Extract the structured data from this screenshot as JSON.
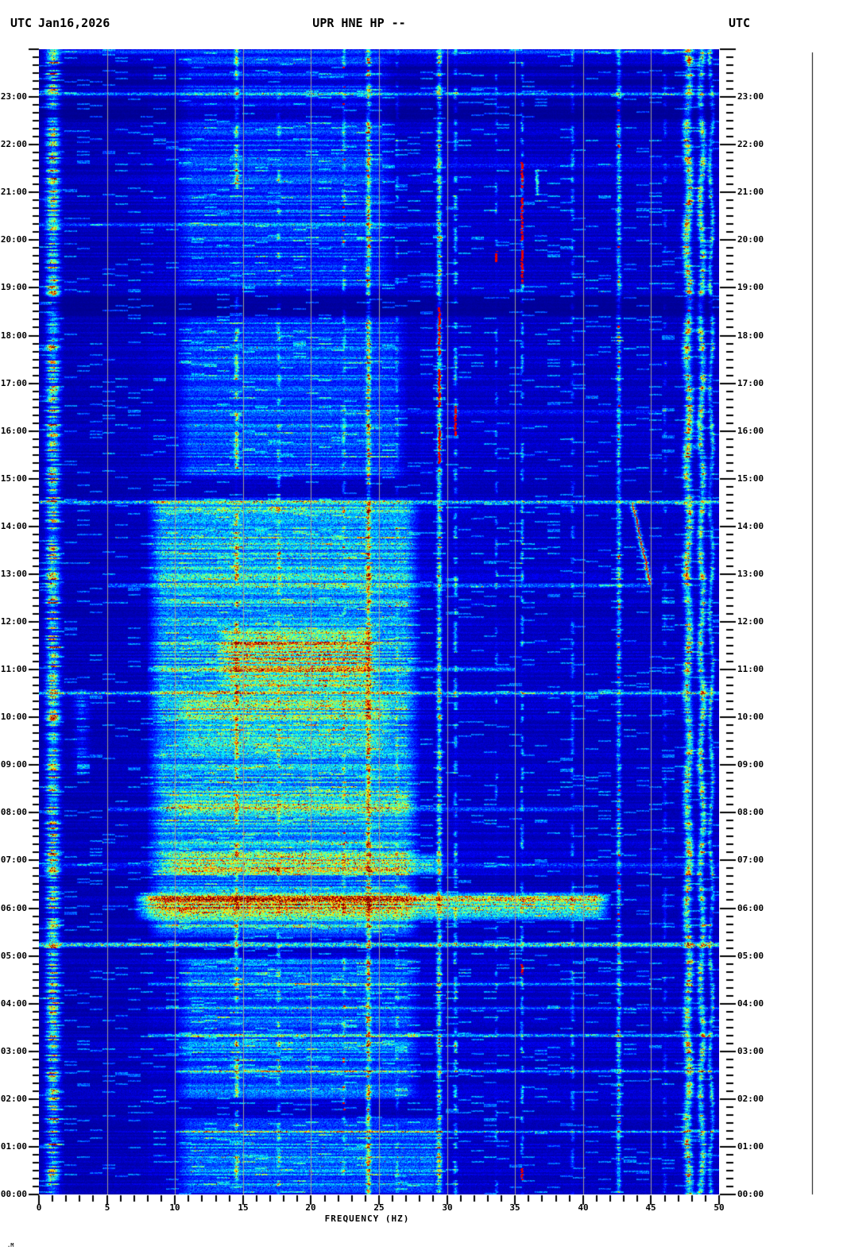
{
  "header": {
    "left_utc": "UTC",
    "date": "Jan16,2026",
    "title": "UPR HNE HP --",
    "right_utc": "UTC"
  },
  "footer_mark": ".M",
  "palette": {
    "page_bg": "#ffffff",
    "text": "#000000",
    "gridline": "#a09e94",
    "deep_blue_background": "#0000b0",
    "cyan_energy": "#00ffff",
    "yellow_energy": "#ffff00",
    "red_peak": "#d00000"
  },
  "chart_data": {
    "type": "heatmap",
    "subtype": "seismic-spectrogram",
    "title": "UPR HNE HP --",
    "date": "Jan16,2026",
    "timezone": "UTC",
    "xlabel": "FREQUENCY (HZ)",
    "x_range_hz": [
      0,
      50
    ],
    "x_major_tick_step_hz": 5,
    "x_minor_tick_step_hz": 1,
    "x_tick_labels": [
      "0",
      "5",
      "10",
      "15",
      "20",
      "25",
      "30",
      "35",
      "40",
      "45",
      "50"
    ],
    "y_axis_direction": "time of day UTC, 00:00 at bottom rising to 24:00 at top",
    "y_minor_tick_minutes": 10,
    "y_tick_labels_left": [
      "23:00",
      "22:00",
      "21:00",
      "20:00",
      "19:00",
      "18:00",
      "17:00",
      "16:00",
      "15:00",
      "14:00",
      "13:00",
      "12:00",
      "11:00",
      "10:00",
      "09:00",
      "08:00",
      "07:00",
      "06:00",
      "05:00",
      "04:00",
      "03:00",
      "02:00",
      "01:00",
      "00:00"
    ],
    "y_tick_labels_right": [
      "23:00",
      "22:00",
      "21:00",
      "20:00",
      "19:00",
      "18:00",
      "17:00",
      "16:00",
      "15:00",
      "14:00",
      "13:00",
      "12:00",
      "11:00",
      "10:00",
      "09:00",
      "08:00",
      "07:00",
      "06:00",
      "05:00",
      "04:00",
      "03:00",
      "02:00",
      "01:00",
      "00:00"
    ],
    "colormap": "jet",
    "gridline_freqs_hz": [
      5,
      10,
      15,
      20,
      25,
      30,
      35,
      40,
      45
    ],
    "features": {
      "background_level": 0.052,
      "hbands": [
        {
          "t": [
            5.4,
            14.6
          ],
          "f": [
            8,
            28
          ],
          "amp": 0.2
        },
        {
          "t": [
            10.6,
            11.9
          ],
          "f": [
            13,
            25
          ],
          "amp": 0.2
        },
        {
          "t": [
            5.75,
            6.35
          ],
          "f": [
            7,
            42
          ],
          "amp": 0.38
        },
        {
          "t": [
            6.7,
            7.15
          ],
          "f": [
            9,
            30
          ],
          "amp": 0.18
        },
        {
          "t": [
            7.9,
            8.45
          ],
          "f": [
            9,
            28
          ],
          "amp": 0.16
        },
        {
          "t": [
            9.3,
            10.45
          ],
          "f": [
            10,
            26
          ],
          "amp": 0.12
        },
        {
          "t": [
            2.0,
            5.0
          ],
          "f": [
            10,
            28
          ],
          "amp": 0.12
        },
        {
          "t": [
            0.0,
            1.6
          ],
          "f": [
            10,
            30
          ],
          "amp": 0.14
        },
        {
          "t": [
            15.0,
            18.4
          ],
          "f": [
            10,
            27
          ],
          "amp": 0.1
        },
        {
          "t": [
            19.0,
            23.9
          ],
          "f": [
            10,
            26
          ],
          "amp": 0.08
        },
        {
          "t": [
            23.9,
            24.0
          ],
          "f": [
            0,
            50
          ],
          "amp": 0.3
        }
      ],
      "hlines": [
        {
          "t": 14.52,
          "f": [
            0,
            50
          ],
          "amp": 0.38
        },
        {
          "t": 5.25,
          "f": [
            0,
            50
          ],
          "amp": 0.38
        },
        {
          "t": 10.5,
          "f": [
            0,
            50
          ],
          "amp": 0.24
        },
        {
          "t": 12.77,
          "f": [
            5,
            45
          ],
          "amp": 0.18
        },
        {
          "t": 8.07,
          "f": [
            5,
            40
          ],
          "amp": 0.22
        },
        {
          "t": 11.02,
          "f": [
            8,
            35
          ],
          "amp": 0.2
        },
        {
          "t": 6.9,
          "f": [
            0,
            50
          ],
          "amp": 0.18
        },
        {
          "t": 4.42,
          "f": [
            8,
            45
          ],
          "amp": 0.16
        },
        {
          "t": 3.9,
          "f": [
            8,
            50
          ],
          "amp": 0.14
        },
        {
          "t": 3.35,
          "f": [
            8,
            50
          ],
          "amp": 0.16
        },
        {
          "t": 2.6,
          "f": [
            10,
            50
          ],
          "amp": 0.14
        },
        {
          "t": 1.32,
          "f": [
            10,
            50
          ],
          "amp": 0.14
        },
        {
          "t": 23.07,
          "f": [
            0,
            50
          ],
          "amp": 0.2
        },
        {
          "t": 21.55,
          "f": [
            10,
            50
          ],
          "amp": 0.1
        },
        {
          "t": 20.33,
          "f": [
            0,
            30
          ],
          "amp": 0.12
        },
        {
          "t": 16.4,
          "f": [
            10,
            46
          ],
          "amp": 0.1
        }
      ],
      "vlines": [
        {
          "f": 1.0,
          "w": 0.45,
          "amp": 0.5,
          "style": "flicker"
        },
        {
          "f": 3.1,
          "w": 0.5,
          "amp": 0.14,
          "style": "flicker",
          "segs": [
            [
              8.8,
              10.6
            ]
          ]
        },
        {
          "f": 14.5,
          "w": 0.14,
          "amp": 0.3,
          "style": "dash",
          "duty": 0.55
        },
        {
          "f": 17.6,
          "w": 0.13,
          "amp": 0.2,
          "style": "dash",
          "duty": 0.45
        },
        {
          "f": 22.4,
          "w": 0.12,
          "amp": 0.18,
          "style": "dash",
          "duty": 0.4,
          "redDuty": 0.04
        },
        {
          "f": 24.2,
          "w": 0.16,
          "amp": 0.42,
          "style": "speckle",
          "redDuty": 0.06
        },
        {
          "f": 26.3,
          "w": 0.11,
          "amp": 0.12,
          "style": "dash",
          "duty": 0.4
        },
        {
          "f": 29.4,
          "w": 0.17,
          "amp": 0.4,
          "style": "speckle",
          "redSegs": [
            [
              15.3,
              16.1
            ],
            [
              16.5,
              17.3
            ],
            [
              17.6,
              18.6
            ]
          ]
        },
        {
          "f": 30.6,
          "w": 0.13,
          "amp": 0.22,
          "style": "dash",
          "duty": 0.5,
          "redSegs": [
            [
              15.9,
              16.55
            ]
          ]
        },
        {
          "f": 33.6,
          "w": 0.1,
          "amp": 0.16,
          "style": "dash",
          "duty": 0.3,
          "redSegs": [
            [
              19.55,
              19.8
            ]
          ]
        },
        {
          "f": 35.5,
          "w": 0.11,
          "amp": 0.2,
          "style": "dash",
          "duty": 0.5,
          "redSegs": [
            [
              19.1,
              19.8
            ],
            [
              20.0,
              20.9
            ],
            [
              21.1,
              21.65
            ],
            [
              0.3,
              0.55
            ],
            [
              4.6,
              4.85
            ]
          ]
        },
        {
          "f": 36.6,
          "w": 0.11,
          "amp": 0.32,
          "style": "solid",
          "segs": [
            [
              20.95,
              21.5
            ]
          ]
        },
        {
          "f": 39.2,
          "w": 0.13,
          "amp": 0.14,
          "style": "dash",
          "duty": 0.5
        },
        {
          "f": 42.6,
          "w": 0.16,
          "amp": 0.28,
          "style": "speckle",
          "redDuty": 0.05
        },
        {
          "f": 46.0,
          "w": 0.12,
          "amp": 0.1,
          "style": "dash",
          "duty": 0.35
        },
        {
          "f": 47.7,
          "w": 0.28,
          "amp": 0.5,
          "style": "wiggle",
          "redDuty": 0.05
        },
        {
          "f": 48.7,
          "w": 0.22,
          "amp": 0.42,
          "style": "wiggle"
        },
        {
          "f": 49.4,
          "w": 0.14,
          "amp": 0.28,
          "style": "wiggle"
        }
      ],
      "darkbands": [
        {
          "t": [
            18.45,
            18.8
          ],
          "k": 0.45
        },
        {
          "t": [
            22.55,
            22.8
          ],
          "k": 0.5
        },
        {
          "t": [
            22.9,
            23.0
          ],
          "k": 0.65
        },
        {
          "t": [
            23.28,
            23.42
          ],
          "k": 0.55
        },
        {
          "t": [
            23.55,
            23.65
          ],
          "k": 0.5
        },
        {
          "t": [
            6.4,
            6.6
          ],
          "k": 0.8
        }
      ],
      "drift_tone": {
        "t_start": 14.5,
        "f_start": 43.6,
        "t_end": 12.8,
        "f_end": 44.9,
        "amp": 0.85
      }
    }
  }
}
